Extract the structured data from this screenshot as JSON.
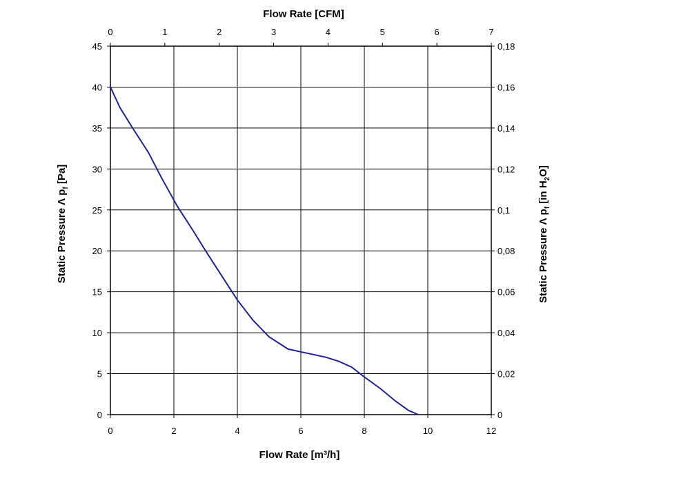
{
  "chart_data": {
    "type": "line",
    "title": "",
    "x_bottom": {
      "label": "Flow Rate [m³/h]",
      "range": [
        0,
        12
      ],
      "ticks": [
        "0",
        "2",
        "4",
        "6",
        "8",
        "10",
        "12"
      ]
    },
    "x_top": {
      "label": "Flow Rate [CFM]",
      "range": [
        0,
        7
      ],
      "ticks": [
        "0",
        "1",
        "2",
        "3",
        "4",
        "5",
        "6",
        "7"
      ]
    },
    "y_left": {
      "label_main": "Static Pressure Λ p",
      "label_sub": "f",
      "label_end": " [Pa]",
      "range": [
        0,
        45
      ],
      "ticks": [
        "0",
        "5",
        "10",
        "15",
        "20",
        "25",
        "30",
        "35",
        "40",
        "45"
      ]
    },
    "y_right": {
      "label_main": "Static Pressure Λ p",
      "label_sub": "f",
      "label_mid": " [in H",
      "label_sub2": "2",
      "label_end": "O]",
      "range": [
        0,
        0.18
      ],
      "ticks": [
        "0",
        "0,02",
        "0,04",
        "0,06",
        "0,08",
        "0,1",
        "0,12",
        "0,14",
        "0,16",
        "0,18"
      ]
    },
    "grid": true,
    "line_color": "#1f1f9c",
    "series": [
      {
        "x": [
          0,
          0.3,
          0.7,
          1.2,
          1.6,
          2.1,
          2.6,
          3.0,
          3.5,
          4.0,
          4.5,
          5.0,
          5.6,
          6.2,
          6.8,
          7.2,
          7.6,
          8.0,
          8.5,
          9.0,
          9.4,
          9.7
        ],
        "y": [
          40,
          37.5,
          35,
          32,
          29,
          25.5,
          22.5,
          20,
          17,
          14,
          11.5,
          9.5,
          8,
          7.5,
          7,
          6.5,
          5.8,
          4.6,
          3.2,
          1.6,
          0.5,
          0
        ]
      }
    ]
  }
}
